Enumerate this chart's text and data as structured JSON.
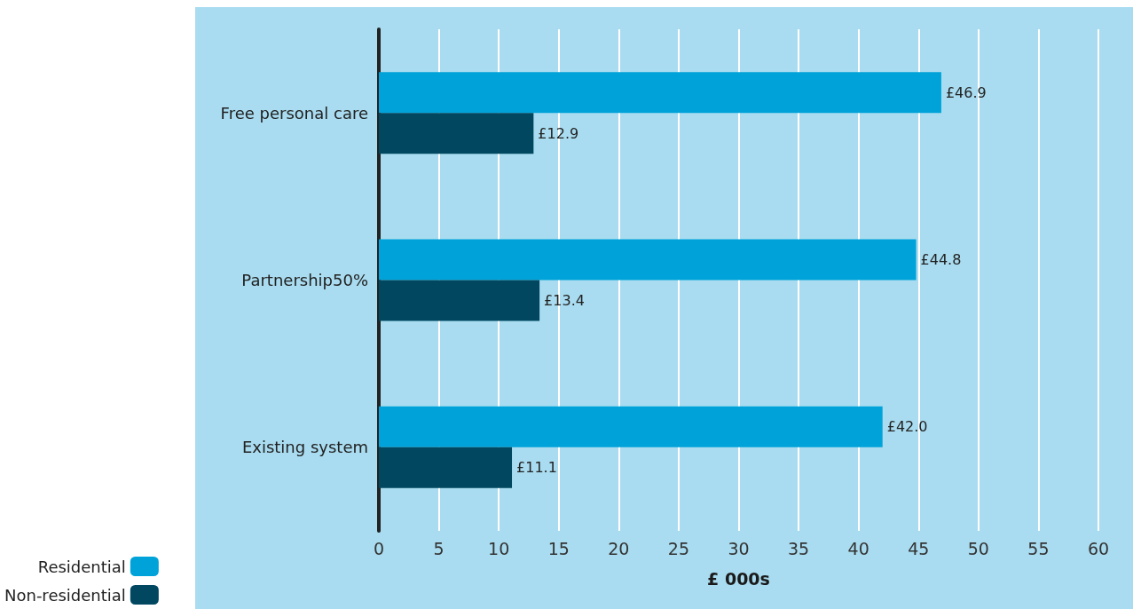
{
  "chart_data": {
    "type": "bar",
    "orientation": "horizontal",
    "xlabel": "£ 000s",
    "categories": [
      "Free personal care",
      "Partnership50%",
      "Existing system"
    ],
    "series": [
      {
        "name": "Residential",
        "color": "#00a3d9",
        "values": [
          46.9,
          44.8,
          42.0
        ],
        "value_labels": [
          "£46.9",
          "£44.8",
          "£42.0"
        ]
      },
      {
        "name": "Non-residential",
        "color": "#00475f",
        "values": [
          12.9,
          13.4,
          11.1
        ],
        "value_labels": [
          "£12.9",
          "£13.4",
          "£11.1"
        ]
      }
    ],
    "xlim": [
      0,
      60
    ],
    "xticks": [
      0,
      5,
      10,
      15,
      20,
      25,
      30,
      35,
      40,
      45,
      50,
      55,
      60
    ],
    "grid": "x",
    "legend": "bottom left"
  }
}
